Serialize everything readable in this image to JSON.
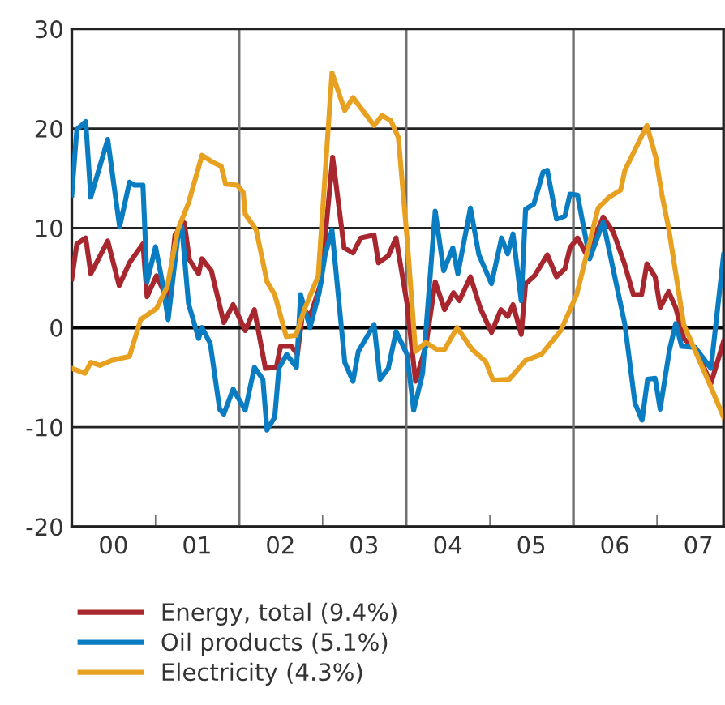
{
  "chart_data": {
    "type": "line",
    "xlim": [
      "2000-01-01",
      "2007-10-19"
    ],
    "ylim": [
      -20,
      30
    ],
    "yticks": [
      -20,
      -10,
      0,
      10,
      20,
      30
    ],
    "xticks": [
      {
        "value": "2000-07-01",
        "label": "00"
      },
      {
        "value": "2001-07-01",
        "label": "01"
      },
      {
        "value": "2002-07-01",
        "label": "02"
      },
      {
        "value": "2003-07-01",
        "label": "03"
      },
      {
        "value": "2004-07-01",
        "label": "04"
      },
      {
        "value": "2005-07-01",
        "label": "05"
      },
      {
        "value": "2006-07-01",
        "label": "06"
      },
      {
        "value": "2007-07-01",
        "label": "07"
      },
      {
        "value": "2001-01-01",
        "label": null
      },
      {
        "value": "2003-01-01",
        "label": null
      },
      {
        "value": "2005-01-01",
        "label": null
      },
      {
        "value": "2007-01-01",
        "label": null
      }
    ],
    "grid": "y",
    "legend": "bottom",
    "marker": "none",
    "line_style": "solid",
    "ref_lines": [
      {
        "axis": "x",
        "value": "2002-01-01",
        "color": "#707070"
      },
      {
        "axis": "x",
        "value": "2004-01-01",
        "color": "#707070"
      },
      {
        "axis": "x",
        "value": "2006-01-01",
        "color": "#707070"
      },
      {
        "axis": "y",
        "value": 0,
        "color": "#000000"
      }
    ],
    "series": [
      {
        "name": "Energy, total (9.4%)",
        "color": "#a8272e",
        "x": [
          "2000-01-01",
          "2000-01-23",
          "2000-03-02",
          "2000-03-24",
          "2000-06-06",
          "2000-07-26",
          "2000-09-09",
          "2000-11-07",
          "2000-11-25",
          "2001-01-05",
          "2001-02-25",
          "2001-03-27",
          "2001-05-07",
          "2001-05-29",
          "2001-07-08",
          "2001-07-23",
          "2001-09-02",
          "2001-10-26",
          "2001-12-06",
          "2002-01-28",
          "2002-03-09",
          "2002-04-26",
          "2002-06-13",
          "2002-07-01",
          "2002-08-18",
          "2002-09-13",
          "2002-10-08",
          "2002-11-07",
          "2002-12-24",
          "2003-01-05",
          "2003-02-14",
          "2003-04-05",
          "2003-05-14",
          "2003-06-17",
          "2003-08-14",
          "2003-09-02",
          "2003-10-15",
          "2003-11-18",
          "2004-01-05",
          "2004-02-11",
          "2004-03-27",
          "2004-05-07",
          "2004-06-17",
          "2004-07-26",
          "2004-08-21",
          "2004-10-08",
          "2004-11-21",
          "2005-01-08",
          "2005-02-18",
          "2005-03-20",
          "2005-04-12",
          "2005-05-18",
          "2005-06-06",
          "2005-07-15",
          "2005-09-09",
          "2005-10-19",
          "2005-11-25",
          "2005-12-17",
          "2006-01-19",
          "2006-03-02",
          "2006-05-11",
          "2006-06-24",
          "2006-08-11",
          "2006-09-20",
          "2006-10-26",
          "2006-11-18",
          "2006-12-24",
          "2007-01-15",
          "2007-02-21",
          "2007-03-24",
          "2007-04-28",
          "2007-06-20",
          "2007-08-25",
          "2007-10-19"
        ],
        "values": [
          4.9,
          8.4,
          9.0,
          5.4,
          8.7,
          4.2,
          6.5,
          8.4,
          3.1,
          5.2,
          2.7,
          9.3,
          10.5,
          6.8,
          5.4,
          6.9,
          5.7,
          0.5,
          2.3,
          -0.3,
          1.8,
          -4.1,
          -4.0,
          -1.9,
          -1.9,
          -2.7,
          1.9,
          1.1,
          4.4,
          7.3,
          17.1,
          8.0,
          7.5,
          9.0,
          9.3,
          6.5,
          7.2,
          9.0,
          2.4,
          -5.4,
          -1.9,
          4.6,
          1.8,
          3.5,
          2.7,
          5.1,
          1.9,
          -0.5,
          1.8,
          1.1,
          2.3,
          -0.7,
          4.4,
          5.2,
          7.3,
          5.1,
          5.9,
          8.0,
          9.0,
          7.2,
          11.1,
          9.6,
          6.5,
          3.3,
          3.3,
          6.4,
          5.1,
          2.0,
          3.6,
          2.0,
          -1.1,
          -2.2,
          -5.6,
          -1.4
        ]
      },
      {
        "name": "Oil products (5.1%)",
        "color": "#0a7dc2",
        "x": [
          "2000-01-01",
          "2000-01-23",
          "2000-03-02",
          "2000-03-24",
          "2000-06-06",
          "2000-07-28",
          "2000-09-09",
          "2000-10-01",
          "2000-11-07",
          "2000-11-25",
          "2001-01-01",
          "2001-01-28",
          "2001-02-25",
          "2001-04-08",
          "2001-04-26",
          "2001-05-25",
          "2001-07-08",
          "2001-07-23",
          "2001-08-28",
          "2001-10-08",
          "2001-10-26",
          "2001-12-06",
          "2002-01-28",
          "2002-03-09",
          "2002-04-15",
          "2002-05-03",
          "2002-06-06",
          "2002-06-24",
          "2002-07-28",
          "2002-09-09",
          "2002-09-27",
          "2002-11-07",
          "2002-12-17",
          "2003-01-12",
          "2003-02-11",
          "2003-04-08",
          "2003-05-14",
          "2003-06-06",
          "2003-08-14",
          "2003-09-09",
          "2003-10-15",
          "2003-11-18",
          "2004-01-05",
          "2004-02-03",
          "2004-03-13",
          "2004-05-07",
          "2004-06-13",
          "2004-07-23",
          "2004-08-14",
          "2004-10-08",
          "2004-11-14",
          "2005-01-08",
          "2005-02-21",
          "2005-03-20",
          "2005-04-12",
          "2005-05-18",
          "2005-06-06",
          "2005-07-12",
          "2005-08-21",
          "2005-09-09",
          "2005-10-19",
          "2005-11-25",
          "2005-12-17",
          "2006-01-19",
          "2006-03-13",
          "2006-05-11",
          "2006-08-14",
          "2006-09-27",
          "2006-10-28",
          "2006-11-21",
          "2006-12-24",
          "2007-01-15",
          "2007-02-25",
          "2007-03-24",
          "2007-04-19",
          "2007-06-17",
          "2007-08-25",
          "2007-10-19"
        ],
        "values": [
          13.3,
          19.9,
          20.7,
          13.1,
          18.9,
          10.1,
          14.6,
          14.3,
          14.3,
          4.6,
          8.1,
          4.9,
          0.8,
          9.0,
          10.1,
          2.4,
          -1.1,
          0.0,
          -1.6,
          -8.2,
          -8.7,
          -6.2,
          -8.3,
          -4.0,
          -5.2,
          -10.3,
          -9.0,
          -4.1,
          -2.7,
          -4.0,
          3.3,
          0.0,
          3.5,
          7.3,
          9.8,
          -3.5,
          -5.4,
          -2.4,
          0.3,
          -5.2,
          -4.1,
          -0.4,
          -2.7,
          -8.3,
          -4.6,
          11.7,
          5.7,
          8.0,
          5.4,
          12.0,
          7.3,
          4.4,
          9.0,
          7.4,
          9.4,
          2.7,
          11.9,
          12.4,
          15.6,
          15.8,
          10.9,
          11.2,
          13.4,
          13.3,
          6.9,
          10.6,
          0.3,
          -7.6,
          -9.3,
          -5.2,
          -5.1,
          -8.2,
          -2.2,
          0.4,
          -1.9,
          -2.0,
          -4.1,
          7.3
        ]
      },
      {
        "name": "Electricity (4.3%)",
        "color": "#e8a020",
        "x": [
          "2000-01-01",
          "2000-02-28",
          "2000-03-24",
          "2000-05-03",
          "2000-06-24",
          "2000-09-09",
          "2000-10-28",
          "2001-01-05",
          "2001-02-21",
          "2001-04-08",
          "2001-05-25",
          "2001-07-23",
          "2001-09-09",
          "2001-10-15",
          "2001-11-03",
          "2001-12-24",
          "2002-01-19",
          "2002-01-28",
          "2002-03-17",
          "2002-05-03",
          "2002-06-06",
          "2002-07-26",
          "2002-09-06",
          "2002-10-15",
          "2002-12-13",
          "2003-02-11",
          "2003-04-08",
          "2003-05-14",
          "2003-08-14",
          "2003-09-17",
          "2003-10-26",
          "2003-11-28",
          "2004-01-05",
          "2004-02-11",
          "2004-03-27",
          "2004-05-14",
          "2004-06-17",
          "2004-08-11",
          "2004-10-15",
          "2004-12-13",
          "2005-01-15",
          "2005-03-27",
          "2005-06-06",
          "2005-08-14",
          "2005-11-07",
          "2006-01-15",
          "2006-04-19",
          "2006-06-06",
          "2006-07-26",
          "2006-08-14",
          "2006-11-18",
          "2006-12-27",
          "2007-01-23",
          "2007-02-21",
          "2007-04-28",
          "2007-08-14",
          "2007-10-19"
        ],
        "values": [
          -4.1,
          -4.6,
          -3.5,
          -3.8,
          -3.3,
          -2.9,
          0.8,
          1.9,
          4.1,
          9.8,
          12.5,
          17.3,
          16.6,
          16.2,
          14.4,
          14.3,
          13.6,
          11.4,
          9.8,
          4.6,
          3.3,
          -0.9,
          -0.8,
          1.9,
          5.2,
          25.6,
          21.8,
          23.1,
          20.3,
          21.3,
          20.8,
          19.1,
          9.0,
          -2.4,
          -1.5,
          -2.2,
          -2.2,
          0.0,
          -2.2,
          -3.4,
          -5.3,
          -5.2,
          -3.3,
          -2.7,
          -0.3,
          3.3,
          12.0,
          13.1,
          13.8,
          15.8,
          20.3,
          17.1,
          13.3,
          10.0,
          0.3,
          -5.4,
          -9.0
        ]
      }
    ]
  }
}
